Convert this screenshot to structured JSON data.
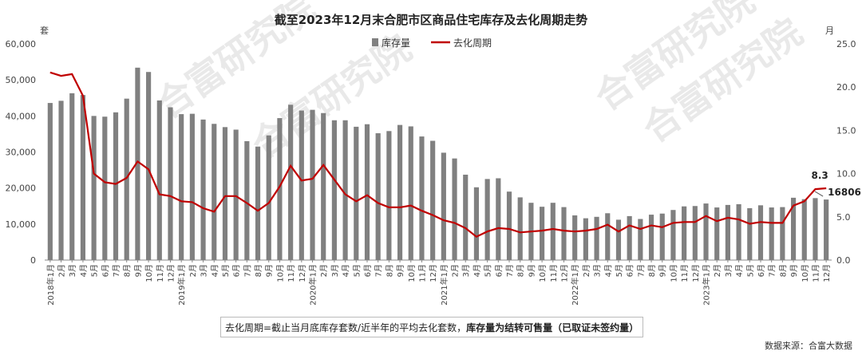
{
  "chart_data": {
    "type": "bar+line",
    "title": "截至2023年12月末合肥市区商品住宅库存及去化周期走势",
    "left_unit": "套",
    "right_unit": "月",
    "left_axis": {
      "range": [
        0,
        60000
      ],
      "ticks": [
        "0",
        "10,000",
        "20,000",
        "30,000",
        "40,000",
        "50,000",
        "60,000"
      ]
    },
    "right_axis": {
      "range": [
        0,
        25
      ],
      "ticks": [
        "0.0",
        "5.0",
        "10.0",
        "15.0",
        "20.0",
        "25.0"
      ]
    },
    "categories": [
      "2018年1月",
      "2月",
      "3月",
      "4月",
      "5月",
      "6月",
      "7月",
      "8月",
      "9月",
      "10月",
      "11月",
      "12月",
      "2019年1月",
      "2月",
      "3月",
      "4月",
      "5月",
      "6月",
      "7月",
      "8月",
      "9月",
      "10月",
      "11月",
      "12月",
      "2020年1月",
      "2月",
      "3月",
      "4月",
      "5月",
      "6月",
      "7月",
      "8月",
      "9月",
      "10月",
      "11月",
      "12月",
      "2021年1月",
      "2月",
      "3月",
      "4月",
      "5月",
      "6月",
      "7月",
      "8月",
      "9月",
      "10月",
      "11月",
      "12月",
      "2022年1月",
      "2月",
      "3月",
      "4月",
      "5月",
      "6月",
      "7月",
      "8月",
      "9月",
      "10月",
      "11月",
      "12月",
      "2023年1月",
      "2月",
      "3月",
      "4月",
      "5月",
      "6月",
      "7月",
      "8月",
      "9月",
      "10月",
      "11月",
      "12月"
    ],
    "series": [
      {
        "name": "库存量",
        "kind": "bar",
        "axis": "left",
        "color": "#808080",
        "values": [
          43600,
          44200,
          46300,
          45800,
          40000,
          39800,
          41000,
          44800,
          53400,
          52200,
          44300,
          42400,
          40500,
          40600,
          39000,
          37800,
          36900,
          36200,
          33000,
          31500,
          34600,
          39400,
          43100,
          41500,
          41700,
          40800,
          38800,
          38800,
          37000,
          37700,
          35200,
          35800,
          37500,
          37100,
          34300,
          33100,
          29800,
          28200,
          23700,
          20200,
          22500,
          22700,
          19000,
          17400,
          15900,
          14800,
          15900,
          14700,
          12400,
          11600,
          12000,
          13000,
          11200,
          12200,
          11400,
          12600,
          12900,
          13900,
          14900,
          15000,
          15700,
          14600,
          15300,
          15500,
          14400,
          15200,
          14600,
          14700,
          17300,
          16900,
          17200,
          16806
        ]
      },
      {
        "name": "去化周期",
        "kind": "line",
        "axis": "right",
        "color": "#c00000",
        "values": [
          21.7,
          21.3,
          21.5,
          19.0,
          10.0,
          9.0,
          8.8,
          9.5,
          11.4,
          10.5,
          7.6,
          7.4,
          6.8,
          6.7,
          6.0,
          5.6,
          7.4,
          7.4,
          6.6,
          5.7,
          6.6,
          8.5,
          10.9,
          9.2,
          9.4,
          11.0,
          9.3,
          7.6,
          6.8,
          7.5,
          6.6,
          6.1,
          6.1,
          6.3,
          5.7,
          5.2,
          4.6,
          4.3,
          3.7,
          2.7,
          3.3,
          3.7,
          3.6,
          3.2,
          3.3,
          3.4,
          3.6,
          3.4,
          3.3,
          3.4,
          3.6,
          4.1,
          3.3,
          4.0,
          3.6,
          4.0,
          3.8,
          4.3,
          4.4,
          4.4,
          5.1,
          4.5,
          4.9,
          4.7,
          4.2,
          4.4,
          4.3,
          4.3,
          6.3,
          6.8,
          8.2,
          8.3
        ]
      }
    ],
    "annotations": {
      "last_bar_label": "16806",
      "last_line_label": "8.3"
    },
    "legend": "top-center",
    "grid": false
  },
  "note": {
    "prefix": "去化周期=截止当月底库存套数/近半年的平均去化套数，",
    "bold": "库存量为结转可售量（已取证未签约量）"
  },
  "source": "数据来源：合富大数据",
  "watermark": "合富研究院"
}
